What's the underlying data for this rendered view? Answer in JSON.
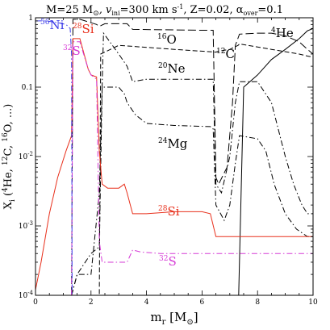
{
  "chart_data": {
    "type": "line",
    "title": "M=25 M⊙, vini=300 km s⁻¹, Z=0.02, αover=0.1",
    "title_parts": {
      "lead": "M=25 M",
      "sun": "⊙",
      "v": ", v",
      "ini": "ini",
      "velocity": "=300 km s",
      "exp": "-1",
      "z": ", Z=0.02, α",
      "over": "over",
      "over_value": "=0.1"
    },
    "xlabel": "mr [M⊙]",
    "xlabel_parts": {
      "m": "m",
      "r": "r",
      "unit": " [M",
      "sun": "⊙",
      "close": "]"
    },
    "ylabel": "Xi (4He, 12C, 16O, ...)",
    "ylabel_parts": {
      "x": "X",
      "i": "i",
      "open": " (",
      "he_mass": "4",
      "he": "He, ",
      "c_mass": "12",
      "c": "C, ",
      "o_mass": "16",
      "o": "O, ...)"
    },
    "xlim": [
      0,
      10
    ],
    "ylim": [
      0.0001,
      1
    ],
    "yscale": "log",
    "x_ticks": [
      "0",
      "2",
      "4",
      "6",
      "8",
      "10"
    ],
    "y_ticks": [
      "10⁻⁴",
      "10⁻³",
      "10⁻²",
      "0.1",
      "1"
    ],
    "y_tick_parts": [
      {
        "base": "10",
        "exp": "-4"
      },
      {
        "base": "10",
        "exp": "-3"
      },
      {
        "base": "10",
        "exp": "-2"
      },
      {
        "base": "0.1",
        "exp": ""
      },
      {
        "base": "1",
        "exp": ""
      }
    ],
    "grid": false,
    "legend": "inline labels",
    "series": [
      {
        "name": "4He",
        "mass_number": "4",
        "element": "He",
        "color": "#000000",
        "style": "solid",
        "x": [
          0,
          1.3,
          1.32,
          7.3,
          7.32,
          7.5,
          8,
          8.5,
          9,
          9.5,
          9.8,
          10
        ],
        "y": [
          0.0001,
          0.0001,
          0.0001,
          0.0001,
          0.0001,
          0.1,
          0.15,
          0.25,
          0.35,
          0.5,
          0.65,
          0.7
        ]
      },
      {
        "name": "12C",
        "mass_number": "12",
        "element": "C",
        "color": "#000000",
        "style": "dashed",
        "x": [
          1.3,
          1.32,
          2.3,
          2.35,
          3,
          5,
          6.5,
          6.6,
          7,
          7.3,
          7.35,
          8.5,
          9.5,
          9.8,
          10
        ],
        "y": [
          0.0001,
          0.0001,
          0.0001,
          0.3,
          0.4,
          0.35,
          0.32,
          0.33,
          0.35,
          0.4,
          0.42,
          0.35,
          0.3,
          0.28,
          0.27
        ]
      },
      {
        "name": "16O",
        "mass_number": "16",
        "element": "O",
        "color": "#000000",
        "style": "long-dash",
        "x": [
          1.3,
          1.35,
          1.6,
          2.2,
          2.3,
          2.5,
          3.3,
          3.5,
          6,
          6.4,
          6.5,
          6.6,
          6.9,
          7.1,
          7.2,
          7.35,
          8,
          8.5,
          9,
          9.5,
          9.8,
          10
        ],
        "y": [
          0.0001,
          0.95,
          0.95,
          0.8,
          0.75,
          0.82,
          0.82,
          0.68,
          0.66,
          0.66,
          0.005,
          0.004,
          0.007,
          0.06,
          0.4,
          0.58,
          0.6,
          0.6,
          0.55,
          0.45,
          0.35,
          0.3
        ]
      },
      {
        "name": "20Ne",
        "mass_number": "20",
        "element": "Ne",
        "color": "#000000",
        "style": "dash-dot",
        "x": [
          1.3,
          1.5,
          2,
          2.3,
          2.45,
          3,
          3.3,
          3.5,
          4,
          4.5,
          6,
          6.4,
          6.5,
          6.7,
          7,
          7.2,
          7.35,
          8,
          8.5,
          9,
          9.3,
          9.6,
          9.8,
          10
        ],
        "y": [
          0.0001,
          0.0002,
          0.0002,
          0.003,
          0.6,
          0.3,
          0.2,
          0.12,
          0.13,
          0.13,
          0.13,
          0.13,
          0.004,
          0.003,
          0.01,
          0.06,
          0.12,
          0.12,
          0.06,
          0.01,
          0.004,
          0.002,
          0.0015,
          0.0015
        ]
      },
      {
        "name": "24Mg",
        "mass_number": "24",
        "element": "Mg",
        "color": "#000000",
        "style": "dash-dot",
        "x": [
          1.3,
          1.5,
          2,
          2.3,
          2.4,
          3,
          3.2,
          3.3,
          3.6,
          4,
          5,
          6.3,
          6.4,
          6.5,
          6.8,
          7,
          7.2,
          7.35,
          8,
          8.3,
          8.6,
          9,
          9.4,
          9.8,
          10
        ],
        "y": [
          0.0001,
          0.0002,
          0.0004,
          0.0005,
          0.1,
          0.1,
          0.08,
          0.06,
          0.04,
          0.03,
          0.028,
          0.027,
          0.025,
          0.002,
          0.0012,
          0.002,
          0.008,
          0.02,
          0.018,
          0.012,
          0.004,
          0.0015,
          0.0009,
          0.0007,
          0.0007
        ]
      },
      {
        "name": "28Si",
        "mass_number": "28",
        "element": "Si",
        "color": "#e8301c",
        "style": "solid",
        "x": [
          0,
          0.2,
          0.5,
          0.8,
          1.1,
          1.3,
          1.35,
          1.6,
          1.9,
          2,
          2.2,
          2.3,
          2.4,
          2.6,
          3,
          3.2,
          3.3,
          3.5,
          4,
          5,
          6,
          6.3,
          6.5,
          6.7,
          7,
          7.3,
          8,
          9,
          10
        ],
        "y": [
          0.00012,
          0.0003,
          0.0015,
          0.005,
          0.012,
          0.02,
          0.5,
          0.5,
          0.18,
          0.15,
          0.14,
          0.012,
          0.004,
          0.0035,
          0.0035,
          0.004,
          0.003,
          0.0015,
          0.0015,
          0.0016,
          0.0016,
          0.0015,
          0.0007,
          0.0007,
          0.0007,
          0.0007,
          0.0007,
          0.0007,
          0.0007
        ]
      },
      {
        "name": "32S",
        "mass_number": "32",
        "element": "S",
        "color": "#d63ad6",
        "style": "dash-dot",
        "x": [
          1.3,
          1.35,
          1.6,
          1.9,
          2,
          2.2,
          2.3,
          2.4,
          2.6,
          3,
          3.2,
          3.3,
          3.5,
          3.8,
          4.5,
          6,
          7,
          8,
          9,
          10
        ],
        "y": [
          0.0001,
          0.45,
          0.45,
          0.18,
          0.15,
          0.13,
          0.0006,
          0.0003,
          0.0003,
          0.0003,
          0.0003,
          0.0003,
          0.00045,
          0.00042,
          0.0004,
          0.0004,
          0.0004,
          0.0004,
          0.0004,
          0.0004
        ]
      },
      {
        "name": "56Ni",
        "mass_number": "56",
        "element": "Ni",
        "color": "#3a3ae8",
        "style": "dash-dot",
        "x": [
          0,
          0.4,
          0.8,
          1.1,
          1.25,
          1.3,
          1.32
        ],
        "y": [
          0.9,
          0.9,
          0.85,
          0.8,
          0.7,
          0.3,
          0.0001
        ]
      }
    ],
    "annotations": [
      {
        "mass_number": "56",
        "element": "Ni",
        "color": "#3a3ae8"
      },
      {
        "mass_number": "28",
        "element": "Si",
        "color": "#e8301c"
      },
      {
        "mass_number": "32",
        "element": "S",
        "color": "#d63ad6"
      },
      {
        "mass_number": "16",
        "element": "O",
        "color": "#000000"
      },
      {
        "mass_number": "12",
        "element": "C",
        "color": "#000000"
      },
      {
        "mass_number": "4",
        "element": "He",
        "color": "#000000"
      },
      {
        "mass_number": "20",
        "element": "Ne",
        "color": "#000000"
      },
      {
        "mass_number": "24",
        "element": "Mg",
        "color": "#000000"
      },
      {
        "mass_number": "28",
        "element": "Si",
        "color": "#e8301c"
      },
      {
        "mass_number": "32",
        "element": "S",
        "color": "#d63ad6"
      }
    ]
  }
}
